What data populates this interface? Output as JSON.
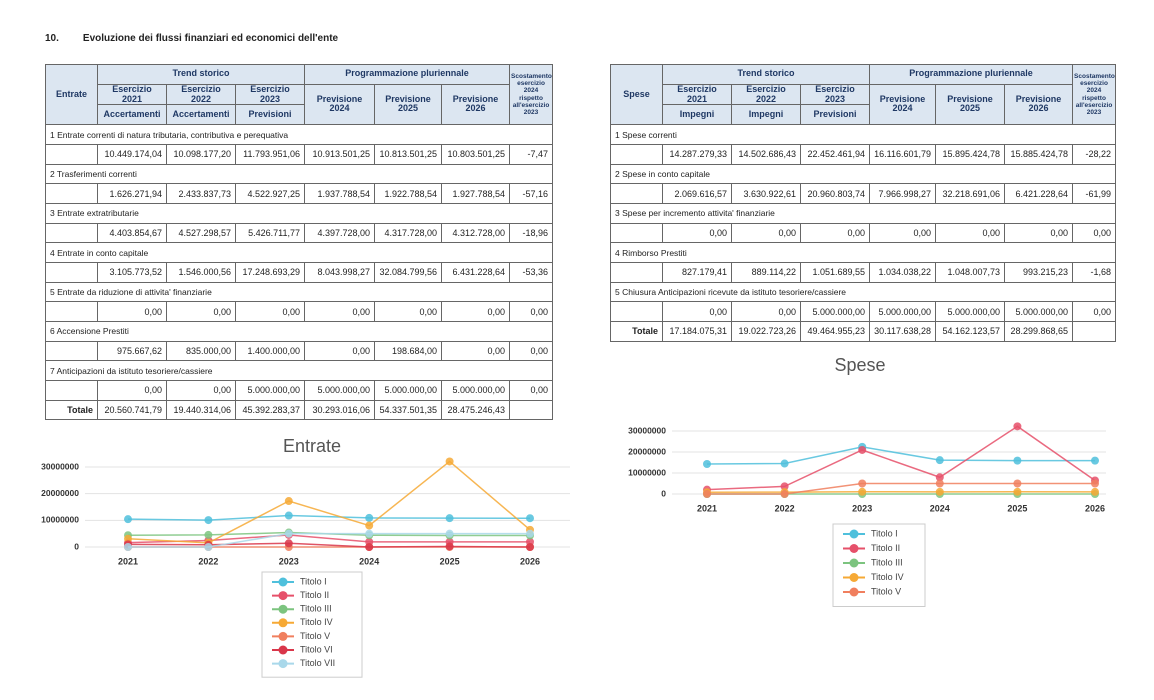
{
  "header": {
    "number": "10.",
    "title": "Evoluzione dei flussi finanziari ed economici dell'ente"
  },
  "tables": [
    {
      "corner": "Entrate",
      "groups": [
        "Trend storico",
        "Programmazione pluriennale"
      ],
      "deviation": "Scostamento esercizio 2024 rispetto all'esercizio 2023",
      "columns": [
        "Esercizio 2021",
        "Esercizio 2022",
        "Esercizio 2023",
        "Previsione 2024",
        "Previsione 2025",
        "Previsione 2026"
      ],
      "subcolumns": [
        "Accertamenti",
        "Accertamenti",
        "Previsioni"
      ],
      "rows": [
        {
          "label": "1  Entrate correnti di natura tributaria, contributiva e perequativa",
          "values": [
            "10.449.174,04",
            "10.098.177,20",
            "11.793.951,06",
            "10.913.501,25",
            "10.813.501,25",
            "10.803.501,25",
            "-7,47"
          ]
        },
        {
          "label": "2  Trasferimenti correnti",
          "values": [
            "1.626.271,94",
            "2.433.837,73",
            "4.522.927,25",
            "1.937.788,54",
            "1.922.788,54",
            "1.927.788,54",
            "-57,16"
          ]
        },
        {
          "label": "3  Entrate extratributarie",
          "values": [
            "4.403.854,67",
            "4.527.298,57",
            "5.426.711,77",
            "4.397.728,00",
            "4.317.728,00",
            "4.312.728,00",
            "-18,96"
          ]
        },
        {
          "label": "4  Entrate in conto capitale",
          "values": [
            "3.105.773,52",
            "1.546.000,56",
            "17.248.693,29",
            "8.043.998,27",
            "32.084.799,56",
            "6.431.228,64",
            "-53,36"
          ]
        },
        {
          "label": "5  Entrate da riduzione di attivita' finanziarie",
          "values": [
            "0,00",
            "0,00",
            "0,00",
            "0,00",
            "0,00",
            "0,00",
            "0,00"
          ]
        },
        {
          "label": "6  Accensione Prestiti",
          "values": [
            "975.667,62",
            "835.000,00",
            "1.400.000,00",
            "0,00",
            "198.684,00",
            "0,00",
            "0,00"
          ]
        },
        {
          "label": "7  Anticipazioni da istituto tesoriere/cassiere",
          "values": [
            "0,00",
            "0,00",
            "5.000.000,00",
            "5.000.000,00",
            "5.000.000,00",
            "5.000.000,00",
            "0,00"
          ]
        }
      ],
      "total": {
        "label": "Totale",
        "values": [
          "20.560.741,79",
          "19.440.314,06",
          "45.392.283,37",
          "30.293.016,06",
          "54.337.501,35",
          "28.475.246,43"
        ]
      }
    },
    {
      "corner": "Spese",
      "groups": [
        "Trend storico",
        "Programmazione pluriennale"
      ],
      "deviation": "Scostamento esercizio 2024 rispetto all'esercizio 2023",
      "columns": [
        "Esercizio 2021",
        "Esercizio 2022",
        "Esercizio 2023",
        "Previsione 2024",
        "Previsione 2025",
        "Previsione 2026"
      ],
      "subcolumns": [
        "Impegni",
        "Impegni",
        "Previsioni"
      ],
      "rows": [
        {
          "label": "1  Spese correnti",
          "values": [
            "14.287.279,33",
            "14.502.686,43",
            "22.452.461,94",
            "16.116.601,79",
            "15.895.424,78",
            "15.885.424,78",
            "-28,22"
          ]
        },
        {
          "label": "2  Spese in conto capitale",
          "values": [
            "2.069.616,57",
            "3.630.922,61",
            "20.960.803,74",
            "7.966.998,27",
            "32.218.691,06",
            "6.421.228,64",
            "-61,99"
          ]
        },
        {
          "label": "3  Spese per incremento attivita' finanziarie",
          "values": [
            "0,00",
            "0,00",
            "0,00",
            "0,00",
            "0,00",
            "0,00",
            "0,00"
          ]
        },
        {
          "label": "4  Rimborso Prestiti",
          "values": [
            "827.179,41",
            "889.114,22",
            "1.051.689,55",
            "1.034.038,22",
            "1.048.007,73",
            "993.215,23",
            "-1,68"
          ]
        },
        {
          "label": "5  Chiusura Anticipazioni ricevute da istituto tesoriere/cassiere",
          "values": [
            "0,00",
            "0,00",
            "5.000.000,00",
            "5.000.000,00",
            "5.000.000,00",
            "5.000.000,00",
            "0,00"
          ]
        }
      ],
      "total": {
        "label": "Totale",
        "values": [
          "17.184.075,31",
          "19.022.723,26",
          "49.464.955,23",
          "30.117.638,28",
          "54.162.123,57",
          "28.299.868,65"
        ]
      }
    }
  ],
  "chart_data": [
    {
      "type": "line",
      "title": "Entrate",
      "categories": [
        "2021",
        "2022",
        "2023",
        "2024",
        "2025",
        "2026"
      ],
      "ylim": [
        0,
        35000000
      ],
      "yticks": [
        0,
        10000000,
        20000000,
        30000000
      ],
      "grid": true,
      "series": [
        {
          "name": "Titolo I",
          "color": "#4fc0dc",
          "values": [
            10449174.04,
            10098177.2,
            11793951.06,
            10913501.25,
            10813501.25,
            10803501.25
          ]
        },
        {
          "name": "Titolo II",
          "color": "#e6506a",
          "values": [
            1626271.94,
            2433837.73,
            4522927.25,
            1937788.54,
            1922788.54,
            1927788.54
          ]
        },
        {
          "name": "Titolo III",
          "color": "#7cc47f",
          "values": [
            4403854.67,
            4527298.57,
            5426711.77,
            4397728.0,
            4317728.0,
            4312728.0
          ]
        },
        {
          "name": "Titolo IV",
          "color": "#f6a935",
          "values": [
            3105773.52,
            1546000.56,
            17248693.29,
            8043998.27,
            32084799.56,
            6431228.64
          ]
        },
        {
          "name": "Titolo V",
          "color": "#f07f5e",
          "values": [
            0,
            0,
            0,
            0,
            0,
            0
          ]
        },
        {
          "name": "Titolo VI",
          "color": "#d9364a",
          "values": [
            975667.62,
            835000.0,
            1400000.0,
            0,
            198684.0,
            0
          ]
        },
        {
          "name": "Titolo VII",
          "color": "#a9d8ea",
          "values": [
            0,
            0,
            5000000,
            5000000,
            5000000,
            5000000
          ]
        }
      ]
    },
    {
      "type": "line",
      "title": "Spese",
      "categories": [
        "2021",
        "2022",
        "2023",
        "2024",
        "2025",
        "2026"
      ],
      "ylim": [
        0,
        35000000
      ],
      "yticks": [
        0,
        10000000,
        20000000,
        30000000
      ],
      "grid": true,
      "series": [
        {
          "name": "Titolo I",
          "color": "#4fc0dc",
          "values": [
            14287279.33,
            14502686.43,
            22452461.94,
            16116601.79,
            15895424.78,
            15885424.78
          ]
        },
        {
          "name": "Titolo II",
          "color": "#e6506a",
          "values": [
            2069616.57,
            3630922.61,
            20960803.74,
            7966998.27,
            32218691.06,
            6421228.64
          ]
        },
        {
          "name": "Titolo III",
          "color": "#7cc47f",
          "values": [
            0,
            0,
            0,
            0,
            0,
            0
          ]
        },
        {
          "name": "Titolo IV",
          "color": "#f6a935",
          "values": [
            827179.41,
            889114.22,
            1051689.55,
            1034038.22,
            1048007.73,
            993215.23
          ]
        },
        {
          "name": "Titolo V",
          "color": "#f07f5e",
          "values": [
            0,
            0,
            5000000,
            5000000,
            5000000,
            5000000
          ]
        }
      ]
    }
  ]
}
